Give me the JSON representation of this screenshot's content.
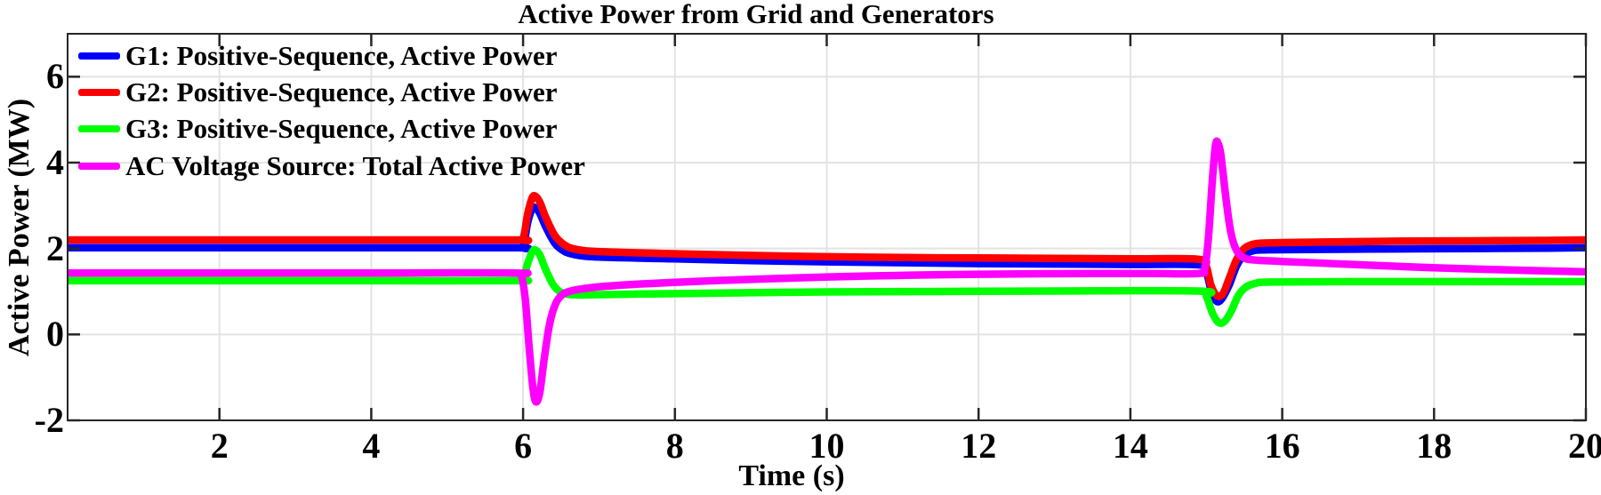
{
  "chart_data": {
    "type": "line",
    "title": "Active Power from Grid and Generators",
    "xlabel": "Time (s)",
    "ylabel": "Active Power (MW)",
    "xlim": [
      0,
      20
    ],
    "ylim": [
      -2,
      7
    ],
    "xticks": [
      2,
      4,
      6,
      8,
      10,
      12,
      14,
      16,
      18,
      20
    ],
    "yticks": [
      -2,
      0,
      2,
      4,
      6
    ],
    "grid": true,
    "legend_position": "top-left-inside",
    "axis_color": "#262626",
    "grid_color": "#e3e3e3",
    "background_color": "#ffffff",
    "series": [
      {
        "name": "G1: Positive-Sequence, Active Power",
        "color": "#0000ff",
        "points": [
          [
            0,
            2.02
          ],
          [
            2,
            2.02
          ],
          [
            4,
            2.02
          ],
          [
            5.9,
            2.02
          ],
          [
            6.0,
            2.05
          ],
          [
            6.06,
            2.6
          ],
          [
            6.12,
            2.93
          ],
          [
            6.16,
            2.95
          ],
          [
            6.22,
            2.82
          ],
          [
            6.3,
            2.5
          ],
          [
            6.42,
            2.12
          ],
          [
            6.55,
            1.93
          ],
          [
            6.7,
            1.85
          ],
          [
            7,
            1.8
          ],
          [
            8,
            1.76
          ],
          [
            9,
            1.72
          ],
          [
            10,
            1.69
          ],
          [
            11,
            1.67
          ],
          [
            12,
            1.65
          ],
          [
            13,
            1.64
          ],
          [
            14,
            1.63
          ],
          [
            14.9,
            1.62
          ],
          [
            15.0,
            1.45
          ],
          [
            15.06,
            1.05
          ],
          [
            15.13,
            0.78
          ],
          [
            15.2,
            0.82
          ],
          [
            15.3,
            1.15
          ],
          [
            15.4,
            1.6
          ],
          [
            15.5,
            1.85
          ],
          [
            15.62,
            1.95
          ],
          [
            15.8,
            1.97
          ],
          [
            16.5,
            1.98
          ],
          [
            17.5,
            1.99
          ],
          [
            18.5,
            2.0
          ],
          [
            19.5,
            2.01
          ],
          [
            20,
            2.02
          ]
        ]
      },
      {
        "name": "G2: Positive-Sequence, Active Power",
        "color": "#ff0000",
        "points": [
          [
            0,
            2.2
          ],
          [
            2,
            2.2
          ],
          [
            4,
            2.2
          ],
          [
            5.9,
            2.2
          ],
          [
            6.0,
            2.24
          ],
          [
            6.06,
            2.8
          ],
          [
            6.12,
            3.18
          ],
          [
            6.16,
            3.22
          ],
          [
            6.22,
            3.08
          ],
          [
            6.3,
            2.72
          ],
          [
            6.42,
            2.3
          ],
          [
            6.55,
            2.08
          ],
          [
            6.7,
            1.98
          ],
          [
            7,
            1.93
          ],
          [
            8,
            1.88
          ],
          [
            9,
            1.84
          ],
          [
            10,
            1.81
          ],
          [
            11,
            1.79
          ],
          [
            12,
            1.78
          ],
          [
            13,
            1.77
          ],
          [
            14,
            1.76
          ],
          [
            14.9,
            1.75
          ],
          [
            15.0,
            1.58
          ],
          [
            15.06,
            1.15
          ],
          [
            15.14,
            0.9
          ],
          [
            15.22,
            0.95
          ],
          [
            15.3,
            1.3
          ],
          [
            15.4,
            1.75
          ],
          [
            15.5,
            2.0
          ],
          [
            15.62,
            2.1
          ],
          [
            15.8,
            2.13
          ],
          [
            16.5,
            2.15
          ],
          [
            17.5,
            2.17
          ],
          [
            18.5,
            2.18
          ],
          [
            19.5,
            2.19
          ],
          [
            20,
            2.2
          ]
        ]
      },
      {
        "name": "G3: Positive-Sequence, Active Power",
        "color": "#00ff00",
        "points": [
          [
            0,
            1.25
          ],
          [
            2,
            1.25
          ],
          [
            4,
            1.25
          ],
          [
            5.9,
            1.25
          ],
          [
            6.0,
            1.3
          ],
          [
            6.06,
            1.65
          ],
          [
            6.12,
            1.92
          ],
          [
            6.16,
            1.97
          ],
          [
            6.22,
            1.85
          ],
          [
            6.3,
            1.5
          ],
          [
            6.4,
            1.15
          ],
          [
            6.5,
            0.98
          ],
          [
            6.62,
            0.93
          ],
          [
            6.8,
            0.92
          ],
          [
            7.5,
            0.94
          ],
          [
            8.5,
            0.96
          ],
          [
            10,
            0.99
          ],
          [
            11.5,
            1.0
          ],
          [
            13,
            1.01
          ],
          [
            14.9,
            1.01
          ],
          [
            15.0,
            0.88
          ],
          [
            15.08,
            0.5
          ],
          [
            15.16,
            0.28
          ],
          [
            15.24,
            0.3
          ],
          [
            15.33,
            0.55
          ],
          [
            15.42,
            0.9
          ],
          [
            15.52,
            1.1
          ],
          [
            15.65,
            1.19
          ],
          [
            15.85,
            1.22
          ],
          [
            17,
            1.23
          ],
          [
            18.5,
            1.23
          ],
          [
            20,
            1.23
          ]
        ]
      },
      {
        "name": "AC Voltage Source: Total Active Power",
        "color": "#ff00ff",
        "points": [
          [
            0,
            1.43
          ],
          [
            2,
            1.43
          ],
          [
            4,
            1.43
          ],
          [
            5.9,
            1.43
          ],
          [
            5.98,
            1.35
          ],
          [
            6.03,
            0.8
          ],
          [
            6.08,
            -0.3
          ],
          [
            6.13,
            -1.25
          ],
          [
            6.17,
            -1.57
          ],
          [
            6.22,
            -1.35
          ],
          [
            6.28,
            -0.55
          ],
          [
            6.35,
            0.25
          ],
          [
            6.43,
            0.72
          ],
          [
            6.52,
            0.93
          ],
          [
            6.65,
            1.02
          ],
          [
            6.9,
            1.09
          ],
          [
            7.5,
            1.17
          ],
          [
            8.5,
            1.25
          ],
          [
            9.5,
            1.31
          ],
          [
            10.5,
            1.36
          ],
          [
            11.5,
            1.39
          ],
          [
            12.5,
            1.41
          ],
          [
            13.5,
            1.42
          ],
          [
            14.3,
            1.42
          ],
          [
            14.9,
            1.42
          ],
          [
            14.98,
            1.55
          ],
          [
            15.03,
            2.3
          ],
          [
            15.08,
            3.6
          ],
          [
            15.12,
            4.4
          ],
          [
            15.15,
            4.47
          ],
          [
            15.19,
            4.2
          ],
          [
            15.25,
            3.3
          ],
          [
            15.32,
            2.4
          ],
          [
            15.4,
            1.95
          ],
          [
            15.5,
            1.78
          ],
          [
            15.65,
            1.73
          ],
          [
            16,
            1.7
          ],
          [
            16.8,
            1.64
          ],
          [
            17.6,
            1.58
          ],
          [
            18.4,
            1.53
          ],
          [
            19.2,
            1.49
          ],
          [
            20,
            1.46
          ]
        ]
      }
    ]
  }
}
